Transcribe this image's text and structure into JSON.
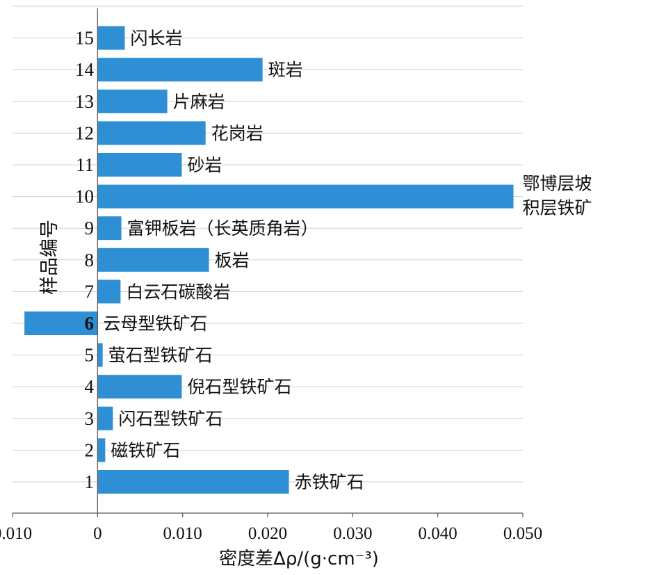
{
  "chart_data": {
    "type": "bar",
    "orientation": "horizontal",
    "xlabel": "密度差Δρ/(g·cm⁻³)",
    "ylabel": "样品编号",
    "xlim": [
      -0.01,
      0.05
    ],
    "x_ticks": [
      "0.010",
      "0",
      "0.010",
      "0.020",
      "0.030",
      "0.040",
      "0.050"
    ],
    "grid": true,
    "categories": [
      "1",
      "2",
      "3",
      "4",
      "5",
      "6",
      "7",
      "8",
      "9",
      "10",
      "11",
      "12",
      "13",
      "14",
      "15"
    ],
    "bar_labels": [
      "赤铁矿石",
      "磁铁矿石",
      "闪石型铁矿石",
      "倪石型铁矿石",
      "萤石型铁矿石",
      "云母型铁矿石",
      "白云石碳酸岩",
      "板岩",
      "富钾板岩（长英质角岩）",
      [
        "鄂博层坡",
        "积层铁矿"
      ],
      "砂岩",
      "花岗岩",
      "片麻岩",
      "斑岩",
      "闪长岩"
    ],
    "values": [
      0.0225,
      0.0009,
      0.0018,
      0.0099,
      0.0006,
      -0.0086,
      0.0027,
      0.0131,
      0.0028,
      0.0489,
      0.0099,
      0.0127,
      0.0082,
      0.0194,
      0.0032
    ],
    "bar_color": "#2f8fd5",
    "bold_category": "6"
  }
}
